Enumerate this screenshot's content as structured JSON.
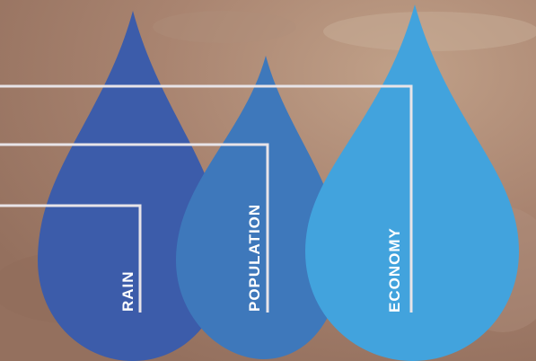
{
  "drops": [
    {
      "label": "RAIN",
      "color": "#3c5caa"
    },
    {
      "label": "POPULATION",
      "color": "#3e78bb"
    },
    {
      "label": "ECONOMY",
      "color": "#42a3dd"
    }
  ],
  "colors": {
    "background": "#a8826a",
    "connector": "#e8e4e8"
  }
}
